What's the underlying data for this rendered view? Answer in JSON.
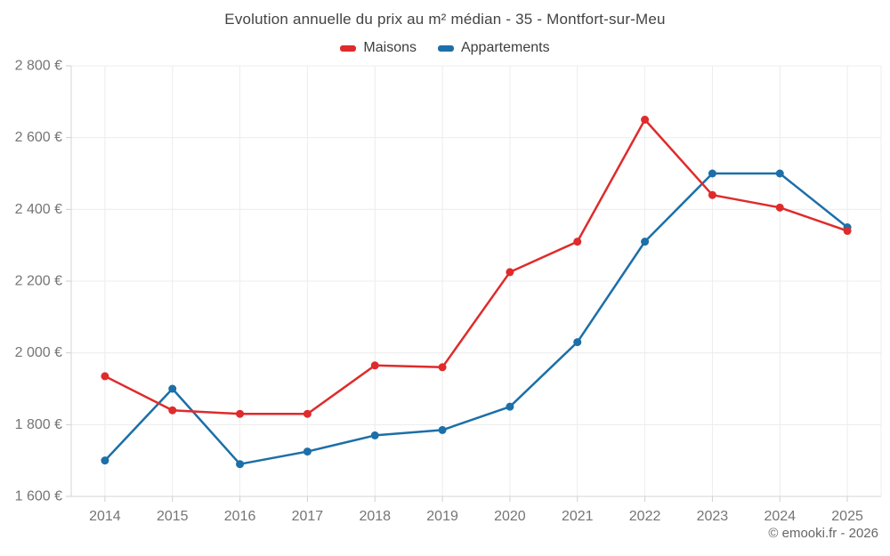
{
  "title": "Evolution annuelle du prix au m² médian - 35 - Montfort-sur-Meu",
  "legend": {
    "items": [
      {
        "label": "Maisons",
        "color": "#df2b2b"
      },
      {
        "label": "Appartements",
        "color": "#1c6fa8"
      }
    ]
  },
  "attribution": "© emooki.fr - 2026",
  "chart_data": {
    "type": "line",
    "title": "Evolution annuelle du prix au m² médian - 35 - Montfort-sur-Meu",
    "x": [
      2014,
      2015,
      2016,
      2017,
      2018,
      2019,
      2020,
      2021,
      2022,
      2023,
      2024,
      2025
    ],
    "xtick_labels": [
      "2014",
      "2015",
      "2016",
      "2017",
      "2018",
      "2019",
      "2020",
      "2021",
      "2022",
      "2023",
      "2024",
      "2025"
    ],
    "series": [
      {
        "name": "Maisons",
        "color": "#df2b2b",
        "values": [
          1935,
          1840,
          1830,
          1830,
          1965,
          1960,
          2225,
          2310,
          2650,
          2440,
          2405,
          2340
        ]
      },
      {
        "name": "Appartements",
        "color": "#1c6fa8",
        "values": [
          1700,
          1900,
          1690,
          1725,
          1770,
          1785,
          1850,
          2030,
          2310,
          2500,
          2500,
          2350
        ]
      }
    ],
    "ylim": [
      1600,
      2800
    ],
    "yticks": [
      1600,
      1800,
      2000,
      2200,
      2400,
      2600,
      2800
    ],
    "ytick_labels": [
      "1 600 €",
      "1 800 €",
      "2 000 €",
      "2 200 €",
      "2 400 €",
      "2 600 €",
      "2 800 €"
    ],
    "ylabel_unit": "€",
    "grid": true,
    "legend_position": "top"
  }
}
